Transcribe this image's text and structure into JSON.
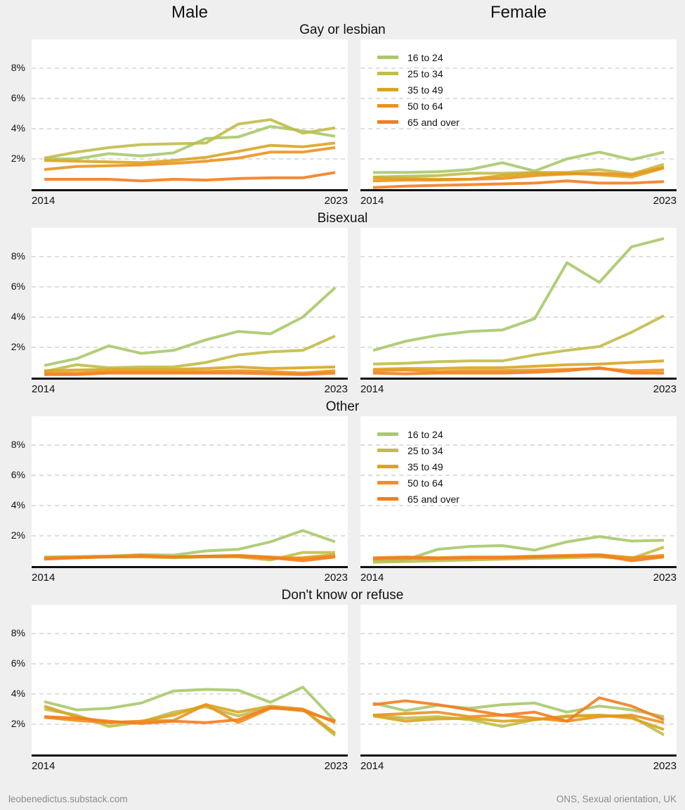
{
  "header": {
    "col_left": "Male",
    "col_right": "Female"
  },
  "axis": {
    "x_start_label": "2014",
    "x_end_label": "2023",
    "y_tick_labels": [
      "8%",
      "6%",
      "4%",
      "2%"
    ],
    "y_tick_values": [
      8,
      6,
      4,
      2
    ],
    "ylim": [
      0,
      10
    ],
    "grid": "dashed-horizontal"
  },
  "legend": {
    "entries": [
      "16 to 24",
      "25 to 34",
      "35 to 49",
      "50 to 64",
      "65 and over"
    ]
  },
  "style": {
    "series_colors": [
      "#a8c96c",
      "#c1bd4a",
      "#d9a521",
      "#ec921e",
      "#f47d20"
    ],
    "background": "#efefef",
    "panel_background": "#ffffff",
    "gridline_color": "#cccccc",
    "axis_color": "#111111",
    "footer_color": "#8b8b8b"
  },
  "footer": {
    "left": "leobenedictus.substack.com",
    "right": "ONS, Sexual orientation, UK"
  },
  "chart_data": [
    {
      "type": "line",
      "title": "Gay or lesbian",
      "sex": "Male",
      "show_legend": false,
      "x": [
        2014,
        2015,
        2016,
        2017,
        2018,
        2019,
        2020,
        2021,
        2022,
        2023
      ],
      "ylim": [
        0,
        10
      ],
      "series": [
        {
          "name": "16 to 24",
          "values": [
            2.0,
            2.0,
            2.35,
            2.2,
            2.4,
            3.35,
            3.45,
            4.15,
            3.85,
            3.5
          ]
        },
        {
          "name": "25 to 34",
          "values": [
            2.05,
            2.45,
            2.75,
            2.95,
            3.0,
            3.05,
            4.3,
            4.6,
            3.7,
            4.05
          ]
        },
        {
          "name": "35 to 49",
          "values": [
            1.9,
            1.85,
            1.8,
            1.75,
            1.9,
            2.1,
            2.5,
            2.9,
            2.8,
            3.05
          ]
        },
        {
          "name": "50 to 64",
          "values": [
            1.3,
            1.5,
            1.55,
            1.6,
            1.7,
            1.85,
            2.05,
            2.45,
            2.45,
            2.75
          ]
        },
        {
          "name": "65 and over",
          "values": [
            0.65,
            0.65,
            0.65,
            0.55,
            0.65,
            0.6,
            0.7,
            0.75,
            0.75,
            1.1
          ]
        }
      ]
    },
    {
      "type": "line",
      "title": "Gay or lesbian",
      "sex": "Female",
      "show_legend": true,
      "x": [
        2014,
        2015,
        2016,
        2017,
        2018,
        2019,
        2020,
        2021,
        2022,
        2023
      ],
      "ylim": [
        0,
        10
      ],
      "series": [
        {
          "name": "16 to 24",
          "values": [
            1.1,
            1.1,
            1.15,
            1.3,
            1.75,
            1.2,
            2.0,
            2.45,
            1.95,
            2.45
          ]
        },
        {
          "name": "25 to 34",
          "values": [
            0.8,
            0.85,
            0.9,
            1.05,
            1.05,
            1.1,
            1.1,
            1.3,
            1.0,
            1.65
          ]
        },
        {
          "name": "35 to 49",
          "values": [
            0.75,
            0.7,
            0.65,
            0.65,
            0.9,
            1.05,
            1.05,
            0.95,
            0.8,
            1.4
          ]
        },
        {
          "name": "50 to 64",
          "values": [
            0.55,
            0.6,
            0.6,
            0.65,
            0.7,
            0.9,
            1.0,
            1.05,
            0.95,
            1.45
          ]
        },
        {
          "name": "65 and over",
          "values": [
            0.1,
            0.2,
            0.25,
            0.3,
            0.35,
            0.4,
            0.55,
            0.4,
            0.4,
            0.5
          ]
        }
      ]
    },
    {
      "type": "line",
      "title": "Bisexual",
      "sex": "Male",
      "show_legend": false,
      "x": [
        2014,
        2015,
        2016,
        2017,
        2018,
        2019,
        2020,
        2021,
        2022,
        2023
      ],
      "ylim": [
        0,
        10
      ],
      "series": [
        {
          "name": "16 to 24",
          "values": [
            0.8,
            1.25,
            2.1,
            1.6,
            1.8,
            2.5,
            3.05,
            2.9,
            4.0,
            5.95
          ]
        },
        {
          "name": "25 to 34",
          "values": [
            0.4,
            0.85,
            0.65,
            0.7,
            0.7,
            1.0,
            1.5,
            1.7,
            1.8,
            2.75
          ]
        },
        {
          "name": "35 to 49",
          "values": [
            0.45,
            0.5,
            0.55,
            0.55,
            0.55,
            0.6,
            0.7,
            0.6,
            0.65,
            0.7
          ]
        },
        {
          "name": "50 to 64",
          "values": [
            0.3,
            0.3,
            0.4,
            0.4,
            0.4,
            0.4,
            0.45,
            0.4,
            0.3,
            0.45
          ]
        },
        {
          "name": "65 and over",
          "values": [
            0.2,
            0.2,
            0.3,
            0.3,
            0.3,
            0.3,
            0.3,
            0.25,
            0.2,
            0.3
          ]
        }
      ]
    },
    {
      "type": "line",
      "title": "Bisexual",
      "sex": "Female",
      "show_legend": false,
      "x": [
        2014,
        2015,
        2016,
        2017,
        2018,
        2019,
        2020,
        2021,
        2022,
        2023
      ],
      "ylim": [
        0,
        10
      ],
      "series": [
        {
          "name": "16 to 24",
          "values": [
            1.8,
            2.4,
            2.8,
            3.05,
            3.15,
            3.9,
            7.6,
            6.3,
            8.65,
            9.2
          ]
        },
        {
          "name": "25 to 34",
          "values": [
            0.9,
            0.95,
            1.05,
            1.1,
            1.1,
            1.5,
            1.8,
            2.05,
            3.0,
            4.1
          ]
        },
        {
          "name": "35 to 49",
          "values": [
            0.55,
            0.6,
            0.6,
            0.65,
            0.65,
            0.75,
            0.85,
            0.9,
            1.0,
            1.1
          ]
        },
        {
          "name": "50 to 64",
          "values": [
            0.45,
            0.5,
            0.4,
            0.45,
            0.45,
            0.5,
            0.55,
            0.6,
            0.45,
            0.5
          ]
        },
        {
          "name": "65 and over",
          "values": [
            0.3,
            0.25,
            0.3,
            0.3,
            0.3,
            0.35,
            0.45,
            0.65,
            0.3,
            0.3
          ]
        }
      ]
    },
    {
      "type": "line",
      "title": "Other",
      "sex": "Male",
      "show_legend": false,
      "x": [
        2014,
        2015,
        2016,
        2017,
        2018,
        2019,
        2020,
        2021,
        2022,
        2023
      ],
      "ylim": [
        0,
        10
      ],
      "series": [
        {
          "name": "16 to 24",
          "values": [
            0.6,
            0.62,
            0.65,
            0.75,
            0.72,
            1.0,
            1.1,
            1.6,
            2.35,
            1.6
          ]
        },
        {
          "name": "25 to 34",
          "values": [
            0.5,
            0.55,
            0.6,
            0.6,
            0.55,
            0.6,
            0.6,
            0.4,
            0.9,
            0.9
          ]
        },
        {
          "name": "35 to 49",
          "values": [
            0.5,
            0.55,
            0.6,
            0.65,
            0.6,
            0.6,
            0.65,
            0.5,
            0.55,
            0.75
          ]
        },
        {
          "name": "50 to 64",
          "values": [
            0.55,
            0.6,
            0.65,
            0.7,
            0.6,
            0.65,
            0.7,
            0.6,
            0.5,
            0.65
          ]
        },
        {
          "name": "65 and over",
          "values": [
            0.45,
            0.55,
            0.6,
            0.65,
            0.6,
            0.65,
            0.65,
            0.55,
            0.35,
            0.6
          ]
        }
      ]
    },
    {
      "type": "line",
      "title": "Other",
      "sex": "Female",
      "show_legend": true,
      "x": [
        2014,
        2015,
        2016,
        2017,
        2018,
        2019,
        2020,
        2021,
        2022,
        2023
      ],
      "ylim": [
        0,
        10
      ],
      "series": [
        {
          "name": "16 to 24",
          "values": [
            0.35,
            0.4,
            1.1,
            1.3,
            1.35,
            1.05,
            1.6,
            1.95,
            1.65,
            1.7
          ]
        },
        {
          "name": "25 to 34",
          "values": [
            0.25,
            0.3,
            0.35,
            0.4,
            0.45,
            0.5,
            0.55,
            0.6,
            0.5,
            1.25
          ]
        },
        {
          "name": "35 to 49",
          "values": [
            0.45,
            0.5,
            0.5,
            0.55,
            0.55,
            0.6,
            0.65,
            0.7,
            0.55,
            0.65
          ]
        },
        {
          "name": "50 to 64",
          "values": [
            0.55,
            0.6,
            0.55,
            0.6,
            0.6,
            0.65,
            0.7,
            0.75,
            0.55,
            0.7
          ]
        },
        {
          "name": "65 and over",
          "values": [
            0.5,
            0.55,
            0.5,
            0.55,
            0.55,
            0.6,
            0.65,
            0.7,
            0.35,
            0.6
          ]
        }
      ]
    },
    {
      "type": "line",
      "title": "Don't know or refuse",
      "sex": "Male",
      "show_legend": false,
      "x": [
        2014,
        2015,
        2016,
        2017,
        2018,
        2019,
        2020,
        2021,
        2022,
        2023
      ],
      "ylim": [
        0,
        10
      ],
      "series": [
        {
          "name": "16 to 24",
          "values": [
            3.5,
            2.95,
            3.05,
            3.4,
            4.2,
            4.3,
            4.25,
            3.45,
            4.45,
            2.2
          ]
        },
        {
          "name": "25 to 34",
          "values": [
            3.0,
            2.6,
            1.85,
            2.15,
            2.8,
            3.15,
            2.55,
            3.1,
            3.0,
            1.25
          ]
        },
        {
          "name": "35 to 49",
          "values": [
            3.2,
            2.5,
            2.1,
            2.2,
            2.6,
            3.3,
            2.8,
            3.2,
            3.0,
            1.4
          ]
        },
        {
          "name": "50 to 64",
          "values": [
            2.45,
            2.25,
            2.1,
            2.2,
            2.25,
            3.3,
            2.1,
            3.05,
            3.0,
            2.1
          ]
        },
        {
          "name": "65 and over",
          "values": [
            2.5,
            2.4,
            2.2,
            2.05,
            2.2,
            2.1,
            2.3,
            3.1,
            2.9,
            2.2
          ]
        }
      ]
    },
    {
      "type": "line",
      "title": "Don't know or refuse",
      "sex": "Female",
      "show_legend": false,
      "x": [
        2014,
        2015,
        2016,
        2017,
        2018,
        2019,
        2020,
        2021,
        2022,
        2023
      ],
      "ylim": [
        0,
        10
      ],
      "series": [
        {
          "name": "16 to 24",
          "values": [
            3.4,
            2.9,
            3.25,
            3.05,
            3.3,
            3.4,
            2.8,
            3.2,
            2.95,
            2.5
          ]
        },
        {
          "name": "25 to 34",
          "values": [
            2.6,
            2.4,
            2.5,
            2.3,
            1.85,
            2.3,
            2.5,
            2.6,
            2.5,
            1.3
          ]
        },
        {
          "name": "35 to 49",
          "values": [
            2.55,
            2.2,
            2.35,
            2.4,
            2.2,
            2.3,
            2.55,
            2.6,
            2.4,
            1.65
          ]
        },
        {
          "name": "50 to 64",
          "values": [
            2.6,
            2.7,
            2.8,
            2.5,
            2.6,
            2.4,
            2.2,
            2.5,
            2.6,
            2.1
          ]
        },
        {
          "name": "65 and over",
          "values": [
            3.3,
            3.55,
            3.3,
            2.95,
            2.6,
            2.8,
            2.2,
            3.75,
            3.2,
            2.3
          ]
        }
      ]
    }
  ]
}
